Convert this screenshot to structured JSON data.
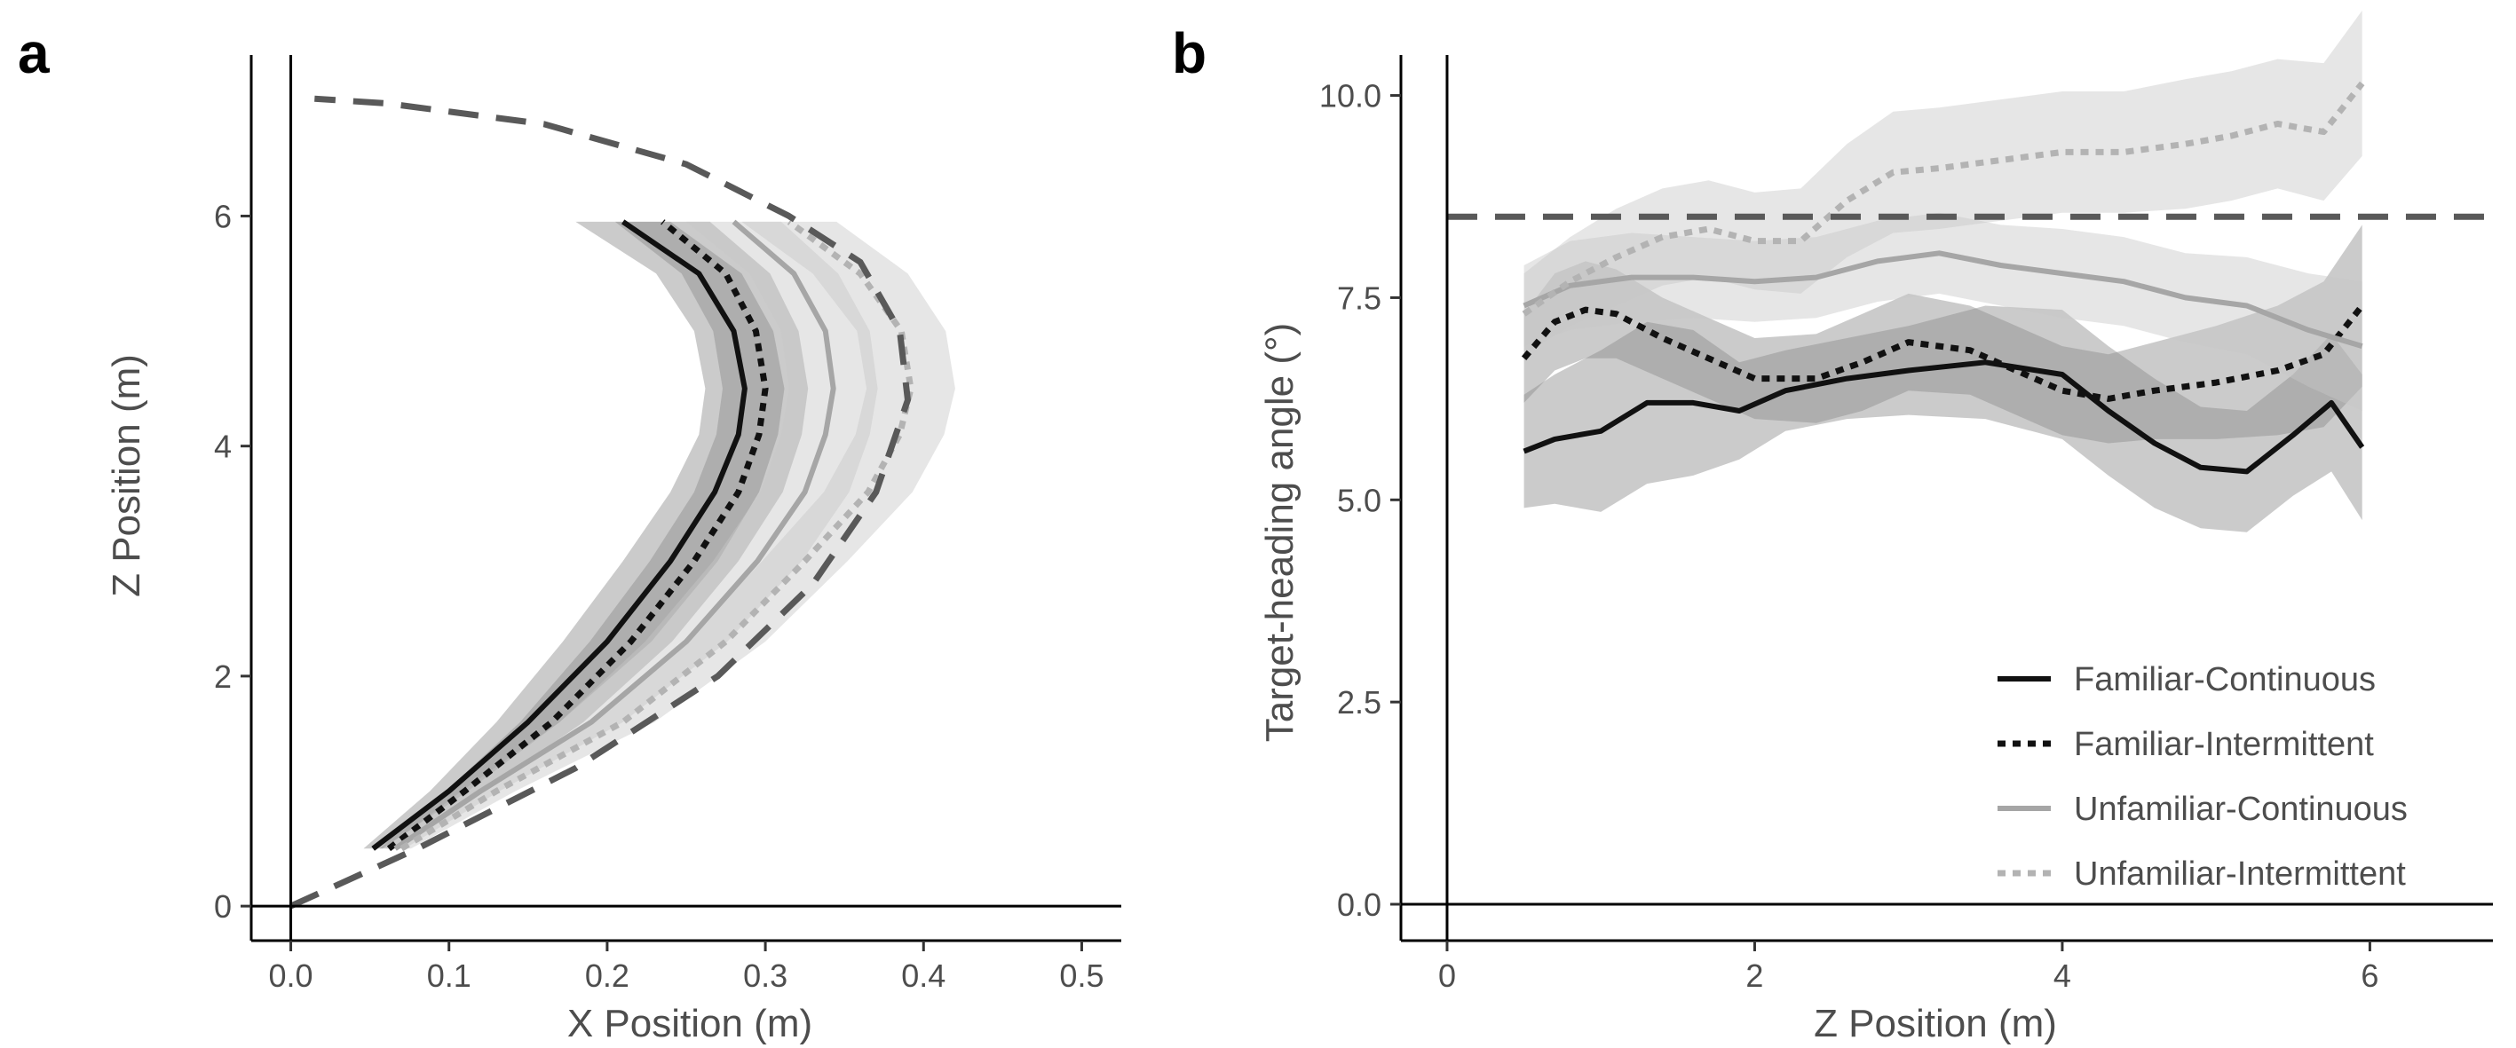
{
  "colors": {
    "familiar_continuous": "#111111",
    "familiar_intermittent": "#111111",
    "unfamiliar_continuous": "#a6a6a6",
    "unfamiliar_intermittent": "#b3b3b3",
    "reference": "#595959",
    "band_dark": "#8c8c8c",
    "band_light": "#c8c8c8"
  },
  "legend": {
    "items": [
      "Familiar-Continuous",
      "Familiar-Intermittent",
      "Unfamiliar-Continuous",
      "Unfamiliar-Intermittent"
    ],
    "placement": "bottom-right of panel b"
  },
  "chart_data": [
    {
      "panel": "a",
      "type": "line",
      "xlabel": "X Position (m)",
      "ylabel": "Z Position (m)",
      "xlim": [
        -0.025,
        0.525
      ],
      "ylim": [
        -0.3,
        7.4
      ],
      "x_ticks": [
        0.0,
        0.1,
        0.2,
        0.3,
        0.4,
        0.5
      ],
      "x_tick_labels": [
        "0.0",
        "0.1",
        "0.2",
        "0.3",
        "0.4",
        "0.5"
      ],
      "y_ticks": [
        0,
        2,
        4,
        6
      ],
      "y_tick_labels": [
        "0",
        "2",
        "4",
        "6"
      ],
      "grid": false,
      "reference_curve": {
        "style": "dashed",
        "points": [
          [
            0.0,
            0.0
          ],
          [
            0.08,
            0.5
          ],
          [
            0.18,
            1.2
          ],
          [
            0.27,
            2.0
          ],
          [
            0.33,
            2.8
          ],
          [
            0.37,
            3.6
          ],
          [
            0.39,
            4.4
          ],
          [
            0.385,
            5.0
          ],
          [
            0.36,
            5.6
          ],
          [
            0.315,
            6.0
          ],
          [
            0.25,
            6.45
          ],
          [
            0.16,
            6.8
          ],
          [
            0.06,
            6.98
          ],
          [
            0.015,
            7.02
          ]
        ]
      },
      "series": [
        {
          "name": "Familiar-Continuous",
          "style": "solid",
          "points": [
            [
              0.052,
              0.5
            ],
            [
              0.1,
              1.0
            ],
            [
              0.15,
              1.6
            ],
            [
              0.2,
              2.3
            ],
            [
              0.24,
              3.0
            ],
            [
              0.268,
              3.6
            ],
            [
              0.283,
              4.1
            ],
            [
              0.287,
              4.5
            ],
            [
              0.28,
              5.0
            ],
            [
              0.258,
              5.5
            ],
            [
              0.21,
              5.95
            ]
          ],
          "band_halfwidth": [
            0.006,
            0.012,
            0.02,
            0.028,
            0.03,
            0.028,
            0.025,
            0.025,
            0.025,
            0.027,
            0.03
          ],
          "band_shade": "dark"
        },
        {
          "name": "Familiar-Intermittent",
          "style": "dotted",
          "points": [
            [
              0.062,
              0.5
            ],
            [
              0.11,
              1.0
            ],
            [
              0.165,
              1.6
            ],
            [
              0.215,
              2.3
            ],
            [
              0.255,
              3.0
            ],
            [
              0.283,
              3.6
            ],
            [
              0.296,
              4.1
            ],
            [
              0.3,
              4.5
            ],
            [
              0.294,
              5.0
            ],
            [
              0.275,
              5.5
            ],
            [
              0.235,
              5.95
            ]
          ],
          "band_halfwidth": [
            0.006,
            0.012,
            0.02,
            0.026,
            0.028,
            0.028,
            0.027,
            0.027,
            0.027,
            0.028,
            0.03
          ],
          "band_shade": "dark"
        },
        {
          "name": "Unfamiliar-Continuous",
          "style": "solid",
          "points": [
            [
              0.066,
              0.5
            ],
            [
              0.12,
              1.0
            ],
            [
              0.19,
              1.6
            ],
            [
              0.25,
              2.3
            ],
            [
              0.295,
              3.0
            ],
            [
              0.325,
              3.6
            ],
            [
              0.338,
              4.1
            ],
            [
              0.343,
              4.5
            ],
            [
              0.338,
              5.0
            ],
            [
              0.318,
              5.5
            ],
            [
              0.28,
              5.95
            ]
          ],
          "band_halfwidth": [
            0.006,
            0.012,
            0.02,
            0.026,
            0.028,
            0.028,
            0.028,
            0.028,
            0.028,
            0.028,
            0.03
          ],
          "band_shade": "light"
        },
        {
          "name": "Unfamiliar-Intermittent",
          "style": "dotted",
          "points": [
            [
              0.07,
              0.5
            ],
            [
              0.13,
              1.0
            ],
            [
              0.21,
              1.6
            ],
            [
              0.275,
              2.3
            ],
            [
              0.325,
              3.0
            ],
            [
              0.365,
              3.6
            ],
            [
              0.385,
              4.1
            ],
            [
              0.392,
              4.5
            ],
            [
              0.386,
              5.0
            ],
            [
              0.36,
              5.5
            ],
            [
              0.315,
              5.95
            ]
          ],
          "band_halfwidth": [
            0.006,
            0.012,
            0.02,
            0.025,
            0.027,
            0.028,
            0.028,
            0.028,
            0.028,
            0.03,
            0.03
          ],
          "band_shade": "light"
        }
      ]
    },
    {
      "panel": "b",
      "type": "line",
      "xlabel": "Z Position (m)",
      "ylabel": "Target-heading angle (°)",
      "xlim": [
        -0.3,
        6.8
      ],
      "ylim": [
        -0.45,
        10.5
      ],
      "x_ticks": [
        0,
        2,
        4,
        6
      ],
      "x_tick_labels": [
        "0",
        "2",
        "4",
        "6"
      ],
      "y_ticks": [
        0.0,
        2.5,
        5.0,
        7.5,
        10.0
      ],
      "y_tick_labels": [
        "0.0",
        "2.5",
        "5.0",
        "7.5",
        "10.0"
      ],
      "grid": false,
      "reference_line": {
        "style": "dashed",
        "y": 8.5
      },
      "series": [
        {
          "name": "Familiar-Continuous",
          "style": "solid",
          "points": [
            [
              0.5,
              5.6
            ],
            [
              0.7,
              5.75
            ],
            [
              1.0,
              5.85
            ],
            [
              1.3,
              6.2
            ],
            [
              1.6,
              6.2
            ],
            [
              1.9,
              6.1
            ],
            [
              2.2,
              6.35
            ],
            [
              2.6,
              6.5
            ],
            [
              3.0,
              6.6
            ],
            [
              3.5,
              6.7
            ],
            [
              4.0,
              6.55
            ],
            [
              4.3,
              6.1
            ],
            [
              4.6,
              5.7
            ],
            [
              4.9,
              5.4
            ],
            [
              5.2,
              5.35
            ],
            [
              5.5,
              5.8
            ],
            [
              5.75,
              6.2
            ],
            [
              5.95,
              5.65
            ]
          ],
          "band_halfwidth": [
            0.7,
            0.8,
            1.0,
            1.0,
            0.9,
            0.6,
            0.5,
            0.5,
            0.55,
            0.7,
            0.8,
            0.8,
            0.8,
            0.75,
            0.75,
            0.75,
            0.85,
            0.9
          ],
          "band_shade": "dark"
        },
        {
          "name": "Familiar-Intermittent",
          "style": "dotted",
          "points": [
            [
              0.5,
              6.75
            ],
            [
              0.7,
              7.2
            ],
            [
              0.9,
              7.35
            ],
            [
              1.1,
              7.3
            ],
            [
              1.4,
              7.0
            ],
            [
              1.7,
              6.75
            ],
            [
              2.0,
              6.5
            ],
            [
              2.4,
              6.5
            ],
            [
              2.7,
              6.7
            ],
            [
              3.0,
              6.95
            ],
            [
              3.4,
              6.85
            ],
            [
              3.7,
              6.6
            ],
            [
              4.0,
              6.35
            ],
            [
              4.3,
              6.25
            ],
            [
              4.6,
              6.35
            ],
            [
              5.0,
              6.45
            ],
            [
              5.4,
              6.6
            ],
            [
              5.7,
              6.8
            ],
            [
              5.95,
              7.4
            ]
          ],
          "band_halfwidth": [
            0.55,
            0.6,
            0.6,
            0.55,
            0.5,
            0.5,
            0.5,
            0.55,
            0.6,
            0.6,
            0.55,
            0.55,
            0.55,
            0.55,
            0.6,
            0.7,
            0.8,
            0.9,
            1.0
          ],
          "band_shade": "dark"
        },
        {
          "name": "Unfamiliar-Continuous",
          "style": "solid",
          "points": [
            [
              0.5,
              7.4
            ],
            [
              0.8,
              7.65
            ],
            [
              1.2,
              7.75
            ],
            [
              1.6,
              7.75
            ],
            [
              2.0,
              7.7
            ],
            [
              2.4,
              7.75
            ],
            [
              2.8,
              7.95
            ],
            [
              3.2,
              8.05
            ],
            [
              3.6,
              7.9
            ],
            [
              4.0,
              7.8
            ],
            [
              4.4,
              7.7
            ],
            [
              4.8,
              7.5
            ],
            [
              5.2,
              7.4
            ],
            [
              5.6,
              7.1
            ],
            [
              5.95,
              6.9
            ]
          ],
          "band_halfwidth": [
            0.5,
            0.55,
            0.55,
            0.5,
            0.5,
            0.5,
            0.5,
            0.5,
            0.5,
            0.55,
            0.55,
            0.55,
            0.6,
            0.7,
            0.8
          ],
          "band_shade": "light"
        },
        {
          "name": "Unfamiliar-Intermittent",
          "style": "dotted",
          "points": [
            [
              0.5,
              7.3
            ],
            [
              0.8,
              7.7
            ],
            [
              1.1,
              8.0
            ],
            [
              1.4,
              8.25
            ],
            [
              1.7,
              8.35
            ],
            [
              2.0,
              8.2
            ],
            [
              2.3,
              8.2
            ],
            [
              2.6,
              8.7
            ],
            [
              2.9,
              9.05
            ],
            [
              3.2,
              9.1
            ],
            [
              3.6,
              9.2
            ],
            [
              4.0,
              9.3
            ],
            [
              4.4,
              9.3
            ],
            [
              4.8,
              9.4
            ],
            [
              5.1,
              9.5
            ],
            [
              5.4,
              9.65
            ],
            [
              5.7,
              9.55
            ],
            [
              5.95,
              10.15
            ]
          ],
          "band_halfwidth": [
            0.5,
            0.55,
            0.6,
            0.6,
            0.6,
            0.6,
            0.65,
            0.7,
            0.75,
            0.75,
            0.75,
            0.75,
            0.75,
            0.8,
            0.8,
            0.8,
            0.85,
            0.9
          ],
          "band_shade": "light"
        }
      ]
    }
  ],
  "panel_labels": {
    "a": "a",
    "b": "b"
  }
}
